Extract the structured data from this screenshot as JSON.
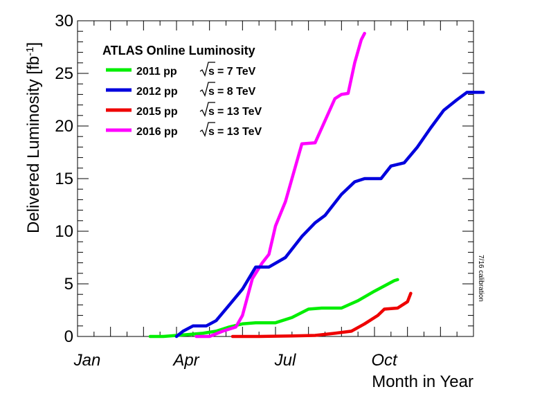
{
  "chart_data": {
    "type": "line",
    "title": "ATLAS Online Luminosity",
    "xlabel": "Month in Year",
    "ylabel_main": "Delivered Luminosity [fb",
    "ylabel_sup": "-1",
    "ylabel_close": "]",
    "xlim": [
      0,
      12
    ],
    "ylim": [
      0,
      30
    ],
    "x_ticks": [
      {
        "label": "Jan",
        "month": 0
      },
      {
        "label": "Apr",
        "month": 3
      },
      {
        "label": "Jul",
        "month": 6
      },
      {
        "label": "Oct",
        "month": 9
      }
    ],
    "y_ticks": [
      0,
      5,
      10,
      15,
      20,
      25,
      30
    ],
    "legend_position": "top-left",
    "grid": false,
    "side_note": "7/16 calibration",
    "series": [
      {
        "name": "2011 pp",
        "energy": "= 7 TeV",
        "color": "#00ee00",
        "points": [
          [
            2.2,
            0
          ],
          [
            2.6,
            0
          ],
          [
            3.0,
            0.1
          ],
          [
            3.4,
            0.2
          ],
          [
            3.8,
            0.3
          ],
          [
            4.2,
            0.5
          ],
          [
            4.6,
            0.9
          ],
          [
            5.0,
            1.2
          ],
          [
            5.4,
            1.3
          ],
          [
            6.0,
            1.3
          ],
          [
            6.5,
            1.8
          ],
          [
            7.0,
            2.6
          ],
          [
            7.4,
            2.7
          ],
          [
            8.0,
            2.7
          ],
          [
            8.5,
            3.4
          ],
          [
            9.0,
            4.3
          ],
          [
            9.3,
            4.8
          ],
          [
            9.6,
            5.3
          ],
          [
            9.7,
            5.4
          ]
        ]
      },
      {
        "name": "2012 pp",
        "energy": "= 8 TeV",
        "color": "#0000dd",
        "points": [
          [
            3.0,
            0
          ],
          [
            3.2,
            0.5
          ],
          [
            3.5,
            1.0
          ],
          [
            3.9,
            1.0
          ],
          [
            4.2,
            1.5
          ],
          [
            4.6,
            3.0
          ],
          [
            5.0,
            4.5
          ],
          [
            5.4,
            6.6
          ],
          [
            5.8,
            6.6
          ],
          [
            6.3,
            7.5
          ],
          [
            6.8,
            9.5
          ],
          [
            7.2,
            10.8
          ],
          [
            7.5,
            11.5
          ],
          [
            8.0,
            13.5
          ],
          [
            8.4,
            14.7
          ],
          [
            8.7,
            15.0
          ],
          [
            9.2,
            15.0
          ],
          [
            9.5,
            16.2
          ],
          [
            9.9,
            16.5
          ],
          [
            10.3,
            18.0
          ],
          [
            10.7,
            19.8
          ],
          [
            11.1,
            21.5
          ],
          [
            11.5,
            22.5
          ],
          [
            11.8,
            23.2
          ],
          [
            12.3,
            23.2
          ]
        ]
      },
      {
        "name": "2015 pp",
        "energy": "= 13 TeV",
        "color": "#ee0000",
        "points": [
          [
            4.7,
            0
          ],
          [
            5.5,
            0
          ],
          [
            6.5,
            0.05
          ],
          [
            7.2,
            0.1
          ],
          [
            7.8,
            0.3
          ],
          [
            8.3,
            0.5
          ],
          [
            8.7,
            1.2
          ],
          [
            9.1,
            2.0
          ],
          [
            9.3,
            2.6
          ],
          [
            9.7,
            2.7
          ],
          [
            10.0,
            3.3
          ],
          [
            10.1,
            4.1
          ]
        ]
      },
      {
        "name": "2016 pp",
        "energy": "= 13 TeV",
        "color": "#ff00ff",
        "points": [
          [
            3.6,
            0
          ],
          [
            4.0,
            0
          ],
          [
            4.4,
            0.5
          ],
          [
            4.8,
            0.9
          ],
          [
            5.0,
            2.0
          ],
          [
            5.3,
            5.5
          ],
          [
            5.6,
            7.0
          ],
          [
            5.8,
            7.8
          ],
          [
            6.0,
            10.5
          ],
          [
            6.3,
            12.8
          ],
          [
            6.5,
            15.0
          ],
          [
            6.8,
            18.3
          ],
          [
            7.2,
            18.4
          ],
          [
            7.5,
            20.5
          ],
          [
            7.8,
            22.6
          ],
          [
            8.0,
            23.0
          ],
          [
            8.2,
            23.1
          ],
          [
            8.4,
            26.0
          ],
          [
            8.6,
            28.2
          ],
          [
            8.7,
            28.8
          ]
        ]
      }
    ]
  }
}
